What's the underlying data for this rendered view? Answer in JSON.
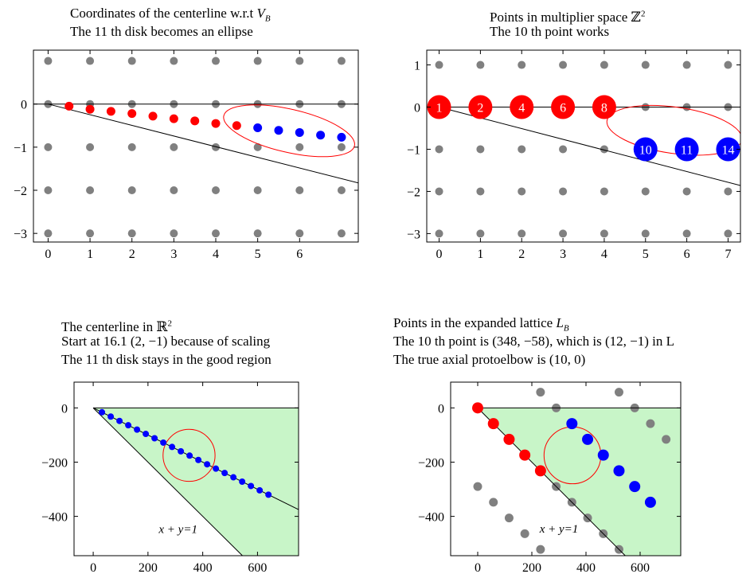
{
  "chart_data": [
    {
      "type": "scatter",
      "title_lines": [
        "Coordinates of the centerline w.r.t V_B",
        "The 11 th disk becomes an ellipse"
      ],
      "xlim": [
        -0.35,
        7.4
      ],
      "ylim": [
        -3.2,
        1.25
      ],
      "xticks": [
        0,
        1,
        2,
        3,
        4,
        5,
        6
      ],
      "yticks": [
        0,
        -1,
        -2,
        -3
      ],
      "grid_points": {
        "x_range": [
          0,
          7
        ],
        "y_range": [
          -3,
          1
        ],
        "color": "#808080"
      },
      "lines": [
        {
          "x": [
            -0.35,
            7.4
          ],
          "y": [
            0,
            0
          ]
        },
        {
          "x": [
            0,
            7.4
          ],
          "y": [
            0,
            -1.83
          ]
        }
      ],
      "ellipse": {
        "cx": 5.75,
        "cy": -0.62,
        "rx": 1.6,
        "ry": 0.5,
        "rotate_deg": 13
      },
      "series": [
        {
          "color": "#ff0000",
          "x": [
            0.5,
            1,
            1.5,
            2,
            2.5,
            3,
            3.5,
            4,
            4.5
          ],
          "y": [
            -0.05,
            -0.12,
            -0.17,
            -0.22,
            -0.28,
            -0.34,
            -0.39,
            -0.45,
            -0.5
          ]
        },
        {
          "color": "#0000ff",
          "x": [
            5,
            5.5,
            6,
            6.5,
            7
          ],
          "y": [
            -0.55,
            -0.61,
            -0.66,
            -0.72,
            -0.77
          ]
        }
      ]
    },
    {
      "type": "scatter",
      "title_lines": [
        "Points in multiplier space ℤ²",
        "The 10 th point works"
      ],
      "xlim": [
        -0.3,
        7.3
      ],
      "ylim": [
        -3.2,
        1.35
      ],
      "xticks": [
        0,
        1,
        2,
        3,
        4,
        5,
        6,
        7
      ],
      "yticks": [
        1,
        0,
        -1,
        -2,
        -3
      ],
      "grid_points": {
        "x_range": [
          0,
          7
        ],
        "y_range": [
          -3,
          1
        ],
        "color": "#808080"
      },
      "lines": [
        {
          "x": [
            -0.3,
            7.3
          ],
          "y": [
            0,
            0
          ]
        },
        {
          "x": [
            0,
            7.3
          ],
          "y": [
            0,
            -1.86
          ]
        }
      ],
      "ellipse": {
        "cx": 5.7,
        "cy": -0.55,
        "rx": 1.65,
        "ry": 0.55,
        "rotate_deg": 8
      },
      "labeled_points": [
        {
          "x": 0,
          "y": 0,
          "label": "1",
          "color": "#ff0000"
        },
        {
          "x": 1,
          "y": 0,
          "label": "2",
          "color": "#ff0000"
        },
        {
          "x": 2,
          "y": 0,
          "label": "4",
          "color": "#ff0000"
        },
        {
          "x": 3,
          "y": 0,
          "label": "6",
          "color": "#ff0000"
        },
        {
          "x": 4,
          "y": 0,
          "label": "8",
          "color": "#ff0000"
        },
        {
          "x": 5,
          "y": -1,
          "label": "10",
          "color": "#0000ff"
        },
        {
          "x": 6,
          "y": -1,
          "label": "11",
          "color": "#0000ff"
        },
        {
          "x": 7,
          "y": -1,
          "label": "14",
          "color": "#0000ff"
        }
      ]
    },
    {
      "type": "scatter",
      "title_lines": [
        "The centerline in ℝ²",
        "Start at 16.1 (2, −1) because of scaling",
        "The 11 th disk stays in the good region"
      ],
      "xlim": [
        -70,
        750
      ],
      "ylim": [
        -545,
        95
      ],
      "xticks": [
        0,
        200,
        400,
        600
      ],
      "yticks": [
        0,
        -200,
        -400
      ],
      "region": {
        "polygon_x": [
          0,
          750,
          750,
          545
        ],
        "polygon_y": [
          0,
          0,
          -545,
          -545
        ],
        "color": "#c8f5c8"
      },
      "lines": [
        {
          "x": [
            0,
            750
          ],
          "y": [
            0,
            0
          ]
        },
        {
          "x": [
            0,
            750
          ],
          "y": [
            0,
            -375
          ]
        },
        {
          "x": [
            0,
            545
          ],
          "y": [
            0,
            -545
          ]
        }
      ],
      "circle": {
        "cx": 350,
        "cy": -175,
        "r": 95
      },
      "annotation": {
        "text": "x + y=1",
        "x": 310,
        "y": -462
      },
      "series": [
        {
          "color": "#0000ff",
          "x": [
            32,
            64,
            96,
            128,
            160,
            192,
            224,
            256,
            288,
            320,
            352,
            384,
            416,
            448,
            480,
            512,
            544,
            576,
            608,
            640
          ],
          "y": [
            -16,
            -32,
            -48,
            -64,
            -80,
            -96,
            -112,
            -128,
            -144,
            -160,
            -176,
            -192,
            -208,
            -224,
            -240,
            -256,
            -272,
            -288,
            -304,
            -320
          ]
        }
      ]
    },
    {
      "type": "scatter",
      "title_lines": [
        "Points in the expanded lattice L_B",
        "The 10 th point is (348, −58), which is (12, −1) in L",
        "The true axial protoelbow is (10, 0)"
      ],
      "xlim": [
        -100,
        750
      ],
      "ylim": [
        -545,
        95
      ],
      "xticks": [
        0,
        200,
        400,
        600
      ],
      "yticks": [
        0,
        -200,
        -400
      ],
      "region": {
        "polygon_x": [
          0,
          750,
          750,
          545
        ],
        "polygon_y": [
          0,
          0,
          -545,
          -545
        ],
        "color": "#c8f5c8"
      },
      "lines": [
        {
          "x": [
            0,
            750
          ],
          "y": [
            0,
            0
          ]
        },
        {
          "x": [
            0,
            545
          ],
          "y": [
            0,
            -545
          ]
        }
      ],
      "circle": {
        "cx": 350,
        "cy": -175,
        "r": 105
      },
      "annotation": {
        "text": "x + y=1",
        "x": 300,
        "y": -460
      },
      "gray_points": {
        "x": [
          0,
          58,
          116,
          174,
          232,
          232,
          290,
          348,
          406,
          464,
          522,
          522,
          580,
          638,
          696
        ],
        "y": [
          -290,
          -348,
          -406,
          -464,
          -522,
          58,
          0,
          -58,
          -116,
          -174,
          -232,
          58,
          0,
          -58,
          -116
        ],
        "extra_x": [
          290,
          348,
          406,
          464,
          522
        ],
        "extra_y": [
          -290,
          -348,
          -406,
          -464,
          -522
        ]
      },
      "series": [
        {
          "color": "#ff0000",
          "x": [
            0,
            58,
            116,
            174,
            232
          ],
          "y": [
            0,
            -58,
            -116,
            -174,
            -232
          ]
        },
        {
          "color": "#0000ff",
          "x": [
            348,
            406,
            464,
            522,
            580,
            638
          ],
          "y": [
            -58,
            -116,
            -174,
            -232,
            -290,
            -348
          ]
        }
      ]
    }
  ]
}
